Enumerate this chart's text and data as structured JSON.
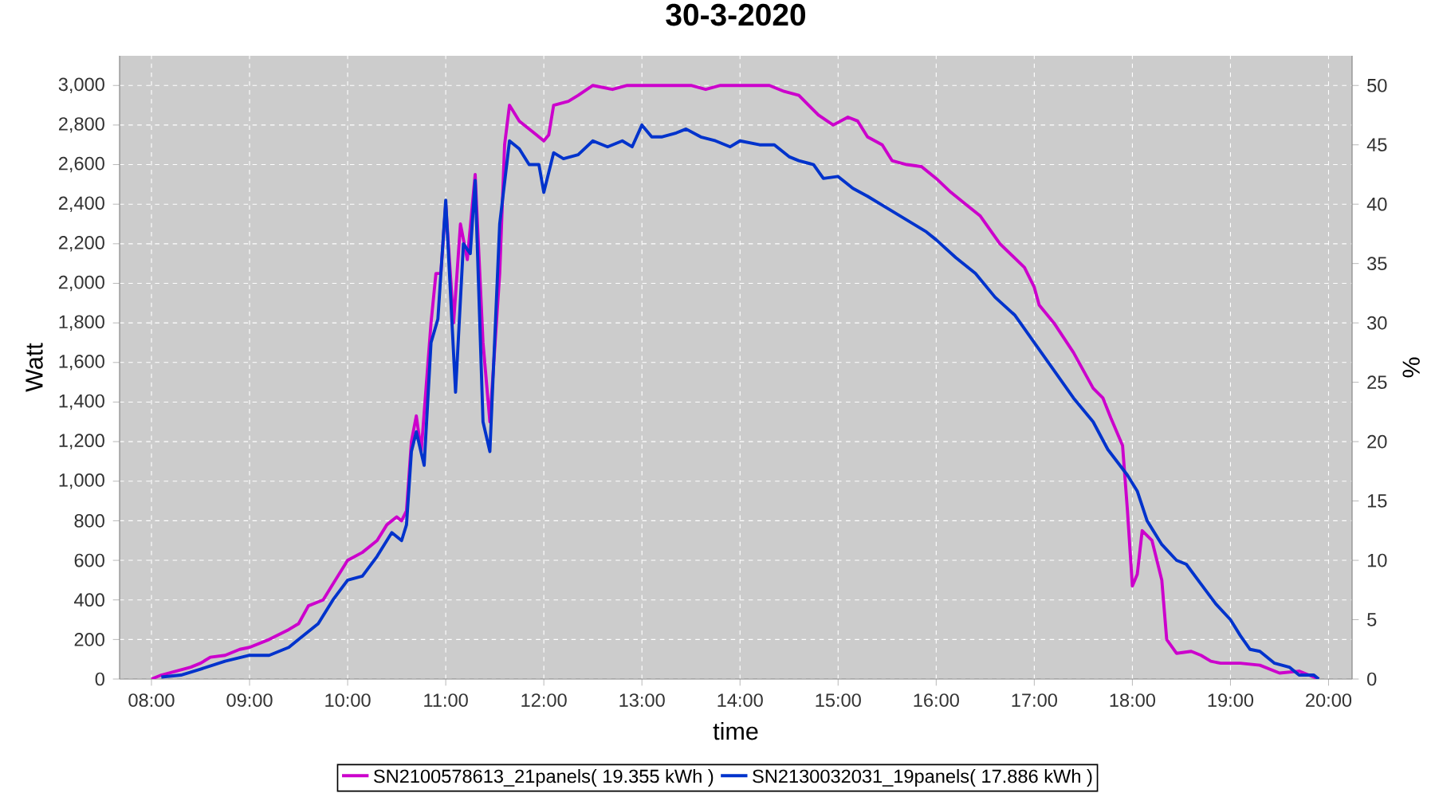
{
  "chart_data": {
    "type": "line",
    "title": "30-3-2020",
    "xlabel": "time",
    "ylabel": "Watt",
    "y2label": "%",
    "xlim": [
      7.675,
      20.24
    ],
    "ylim": [
      0,
      3150
    ],
    "y2lim": [
      0,
      52.5
    ],
    "xticks": [
      {
        "value": 8,
        "label": "08:00"
      },
      {
        "value": 9,
        "label": "09:00"
      },
      {
        "value": 10,
        "label": "10:00"
      },
      {
        "value": 11,
        "label": "11:00"
      },
      {
        "value": 12,
        "label": "12:00"
      },
      {
        "value": 13,
        "label": "13:00"
      },
      {
        "value": 14,
        "label": "14:00"
      },
      {
        "value": 15,
        "label": "15:00"
      },
      {
        "value": 16,
        "label": "16:00"
      },
      {
        "value": 17,
        "label": "17:00"
      },
      {
        "value": 18,
        "label": "18:00"
      },
      {
        "value": 19,
        "label": "19:00"
      },
      {
        "value": 20,
        "label": "20:00"
      }
    ],
    "yticks": [
      0,
      200,
      400,
      600,
      800,
      {
        "value": 1000,
        "label": "1,000"
      },
      {
        "value": 1200,
        "label": "1,200"
      },
      {
        "value": 1400,
        "label": "1,400"
      },
      {
        "value": 1600,
        "label": "1,600"
      },
      {
        "value": 1800,
        "label": "1,800"
      },
      {
        "value": 2000,
        "label": "2,000"
      },
      {
        "value": 2200,
        "label": "2,200"
      },
      {
        "value": 2400,
        "label": "2,400"
      },
      {
        "value": 2600,
        "label": "2,600"
      },
      {
        "value": 2800,
        "label": "2,800"
      },
      {
        "value": 3000,
        "label": "3,000"
      }
    ],
    "y2ticks": [
      0,
      5,
      10,
      15,
      20,
      25,
      30,
      35,
      40,
      45,
      50
    ],
    "grid": true,
    "legend": "bottom",
    "marker": "none",
    "line_style": "solid",
    "series": [
      {
        "name": "SN2100578613_21panels( 19.355 kWh )",
        "color": "#cc00cc",
        "x": [
          8.0,
          8.1,
          8.25,
          8.4,
          8.5,
          8.6,
          8.75,
          8.9,
          9.0,
          9.2,
          9.4,
          9.5,
          9.6,
          9.75,
          9.85,
          10.0,
          10.15,
          10.3,
          10.4,
          10.5,
          10.55,
          10.6,
          10.65,
          10.7,
          10.75,
          10.85,
          10.9,
          10.95,
          11.0,
          11.08,
          11.15,
          11.22,
          11.3,
          11.38,
          11.45,
          11.55,
          11.6,
          11.65,
          11.75,
          11.9,
          12.0,
          12.05,
          12.1,
          12.25,
          12.35,
          12.5,
          12.7,
          12.85,
          13.0,
          13.5,
          13.65,
          13.8,
          14.0,
          14.3,
          14.45,
          14.6,
          14.8,
          14.95,
          15.1,
          15.2,
          15.3,
          15.45,
          15.55,
          15.7,
          15.85,
          16.0,
          16.15,
          16.3,
          16.45,
          16.65,
          16.9,
          17.0,
          17.05,
          17.2,
          17.4,
          17.6,
          17.7,
          17.78,
          17.9,
          17.95,
          18.0,
          18.05,
          18.1,
          18.2,
          18.3,
          18.35,
          18.45,
          18.6,
          18.7,
          18.8,
          18.9,
          19.1,
          19.3,
          19.5,
          19.7,
          19.85,
          19.9
        ],
        "values": [
          0,
          20,
          40,
          60,
          80,
          110,
          120,
          150,
          160,
          200,
          250,
          280,
          370,
          400,
          480,
          600,
          640,
          700,
          780,
          820,
          800,
          850,
          1200,
          1330,
          1150,
          1800,
          2050,
          2050,
          2400,
          1800,
          2300,
          2120,
          2550,
          1700,
          1300,
          2050,
          2700,
          2900,
          2820,
          2760,
          2720,
          2750,
          2900,
          2920,
          2950,
          3000,
          2980,
          3000,
          3000,
          3000,
          2980,
          3000,
          3000,
          3000,
          2970,
          2950,
          2850,
          2800,
          2840,
          2820,
          2740,
          2700,
          2620,
          2600,
          2590,
          2530,
          2460,
          2400,
          2340,
          2200,
          2080,
          1980,
          1890,
          1800,
          1650,
          1470,
          1420,
          1320,
          1180,
          850,
          470,
          530,
          750,
          700,
          500,
          200,
          130,
          140,
          120,
          90,
          80,
          80,
          70,
          30,
          40,
          10,
          0
        ]
      },
      {
        "name": "SN2130032031_19panels( 17.886 kWh )",
        "color": "#0033cc",
        "x": [
          8.1,
          8.3,
          8.5,
          8.75,
          9.0,
          9.2,
          9.4,
          9.5,
          9.7,
          9.85,
          10.0,
          10.15,
          10.3,
          10.45,
          10.55,
          10.6,
          10.65,
          10.7,
          10.78,
          10.85,
          10.92,
          11.0,
          11.1,
          11.18,
          11.25,
          11.3,
          11.38,
          11.45,
          11.55,
          11.65,
          11.75,
          11.85,
          11.95,
          12.0,
          12.1,
          12.2,
          12.35,
          12.5,
          12.65,
          12.8,
          12.9,
          13.0,
          13.1,
          13.2,
          13.35,
          13.45,
          13.6,
          13.75,
          13.9,
          14.0,
          14.2,
          14.35,
          14.5,
          14.6,
          14.75,
          14.85,
          15.0,
          15.15,
          15.3,
          15.5,
          15.7,
          15.9,
          16.0,
          16.2,
          16.4,
          16.6,
          16.8,
          17.0,
          17.2,
          17.4,
          17.6,
          17.75,
          17.95,
          18.05,
          18.15,
          18.3,
          18.45,
          18.55,
          18.7,
          18.85,
          19.0,
          19.1,
          19.2,
          19.3,
          19.45,
          19.6,
          19.7,
          19.85,
          19.9
        ],
        "values": [
          10,
          20,
          50,
          90,
          120,
          120,
          160,
          200,
          280,
          400,
          500,
          520,
          620,
          740,
          700,
          780,
          1150,
          1250,
          1080,
          1700,
          1820,
          2420,
          1450,
          2200,
          2150,
          2520,
          1300,
          1150,
          2300,
          2720,
          2680,
          2600,
          2600,
          2460,
          2660,
          2630,
          2650,
          2720,
          2690,
          2720,
          2690,
          2800,
          2740,
          2740,
          2760,
          2780,
          2740,
          2720,
          2690,
          2720,
          2700,
          2700,
          2640,
          2620,
          2600,
          2530,
          2540,
          2480,
          2440,
          2380,
          2320,
          2260,
          2220,
          2130,
          2050,
          1930,
          1840,
          1700,
          1560,
          1420,
          1300,
          1160,
          1030,
          950,
          800,
          680,
          600,
          580,
          480,
          380,
          300,
          220,
          150,
          140,
          80,
          60,
          20,
          20,
          0
        ]
      }
    ]
  }
}
